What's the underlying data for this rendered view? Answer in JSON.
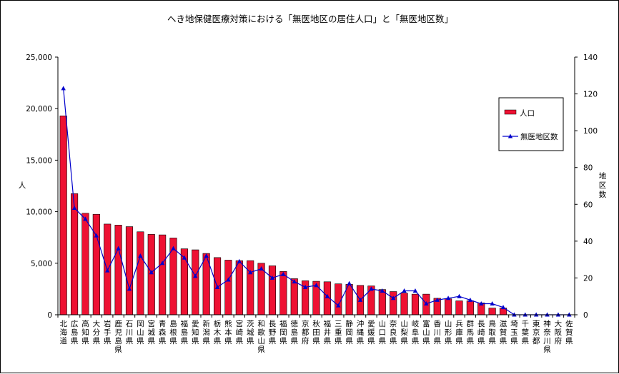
{
  "chart_data": {
    "type": "bar",
    "title": "へき地保健医療対策における「無医地区の居住人口」と「無医地区数」",
    "ylabel_left": "人",
    "ylabel_right": "地区数",
    "ylim_left": [
      0,
      25000
    ],
    "ylim_right": [
      0,
      140
    ],
    "yticks_left": [
      "0",
      "5,000",
      "10,000",
      "15,000",
      "20,000",
      "25,000"
    ],
    "yticks_right": [
      "0",
      "20",
      "40",
      "60",
      "80",
      "100",
      "120",
      "140"
    ],
    "grid": false,
    "legend_position": "right",
    "categories": [
      "北海道",
      "広島県",
      "高知県",
      "大分県",
      "岩手県",
      "鹿児島県",
      "石川県",
      "岡山県",
      "宮城県",
      "青森県",
      "島根県",
      "福島県",
      "愛知県",
      "新潟県",
      "栃木県",
      "熊本県",
      "宮崎県",
      "茨城県",
      "和歌山県",
      "長野県",
      "福岡県",
      "徳島県",
      "京都府",
      "秋田県",
      "福井県",
      "三重県",
      "静岡県",
      "沖縄県",
      "愛媛県",
      "山口県",
      "奈良県",
      "山梨県",
      "岐阜県",
      "富山県",
      "香川県",
      "山形県",
      "兵庫県",
      "群馬県",
      "長崎県",
      "鳥取県",
      "滋賀県",
      "埼玉県",
      "千葉県",
      "東京都",
      "神奈川県",
      "大阪府",
      "佐賀県"
    ],
    "series": [
      {
        "name": "人口",
        "type": "bar",
        "axis": "left",
        "color": "#ee1133",
        "values": [
          19300,
          11750,
          9850,
          9750,
          8800,
          8700,
          8550,
          8050,
          7800,
          7750,
          7450,
          6400,
          6300,
          5950,
          5550,
          5300,
          5250,
          5250,
          5000,
          4750,
          4200,
          3500,
          3300,
          3250,
          3200,
          3000,
          2950,
          2850,
          2800,
          2450,
          2250,
          2100,
          2000,
          2000,
          1600,
          1550,
          1350,
          1350,
          1150,
          650,
          650,
          0,
          0,
          0,
          0,
          0,
          0
        ]
      },
      {
        "name": "無医地区数",
        "type": "line",
        "axis": "right",
        "color": "#0000cc",
        "marker": "triangle",
        "values": [
          123,
          58,
          52,
          43,
          24,
          36,
          14,
          32,
          23,
          28,
          36,
          31,
          21,
          32,
          15,
          19,
          29,
          23,
          25,
          20,
          22,
          18,
          15,
          16,
          10,
          5,
          17,
          8,
          14,
          13,
          9,
          13,
          13,
          6,
          8,
          9,
          10,
          8,
          6,
          6,
          4,
          0,
          0,
          0,
          0,
          0,
          0
        ]
      }
    ]
  }
}
